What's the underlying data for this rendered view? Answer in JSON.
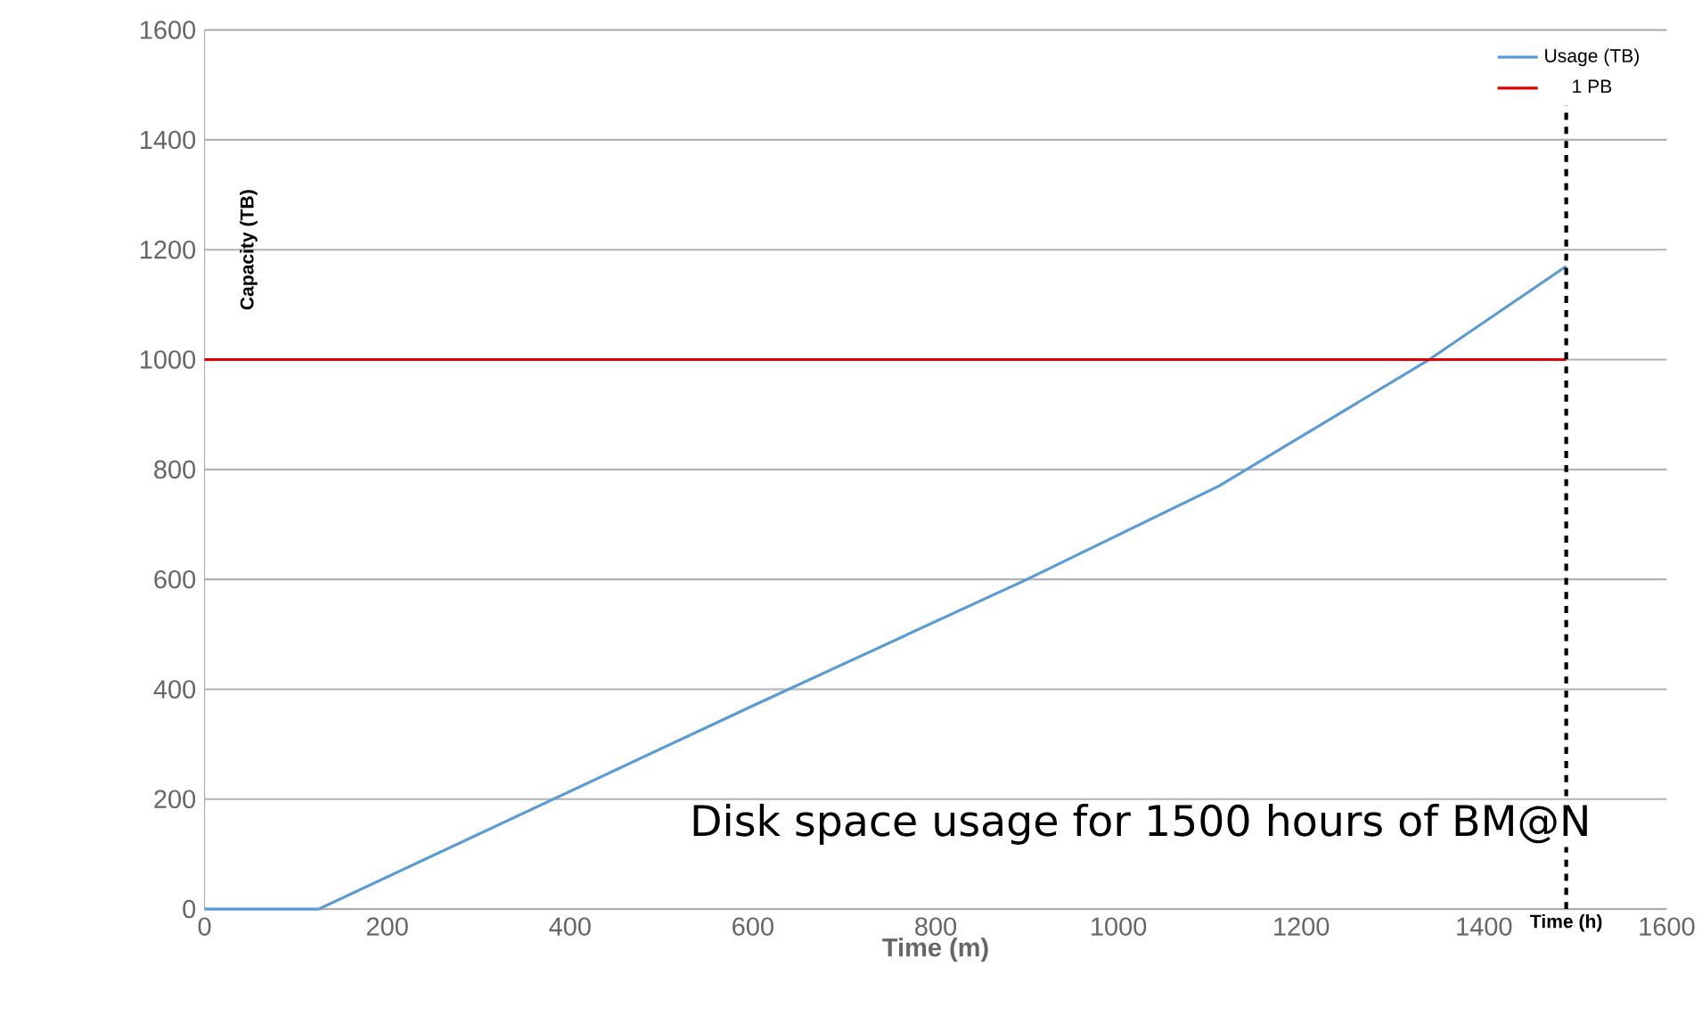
{
  "chart_data": {
    "type": "line",
    "xlabel": "Time (m)",
    "ylabel": "Capacity (TB)",
    "xlim": [
      0,
      1600
    ],
    "ylim": [
      0,
      1600
    ],
    "xticks": [
      0,
      200,
      400,
      600,
      800,
      1000,
      1200,
      1400,
      1600
    ],
    "yticks": [
      0,
      200,
      400,
      600,
      800,
      1000,
      1200,
      1400,
      1600
    ],
    "series": [
      {
        "name": "Usage (TB)",
        "color": "#5b9bd5",
        "x": [
          0,
          125,
          600,
          900,
          1110,
          1340,
          1490
        ],
        "values": [
          0,
          0,
          370,
          600,
          770,
          1000,
          1170
        ]
      },
      {
        "name": "1 PB",
        "color": "#e00000",
        "x": [
          0,
          1490
        ],
        "values": [
          1000,
          1000
        ]
      }
    ],
    "ref_lines": [
      {
        "axis": "x",
        "value": 1490,
        "label": "Time (h)",
        "color": "#000000",
        "line_style": "dashed"
      }
    ],
    "annotations": [
      "Disk space usage for 1500 hours of BM@N"
    ],
    "grid": "y",
    "legend": "top right",
    "marker": "none",
    "line_style": "solid"
  }
}
